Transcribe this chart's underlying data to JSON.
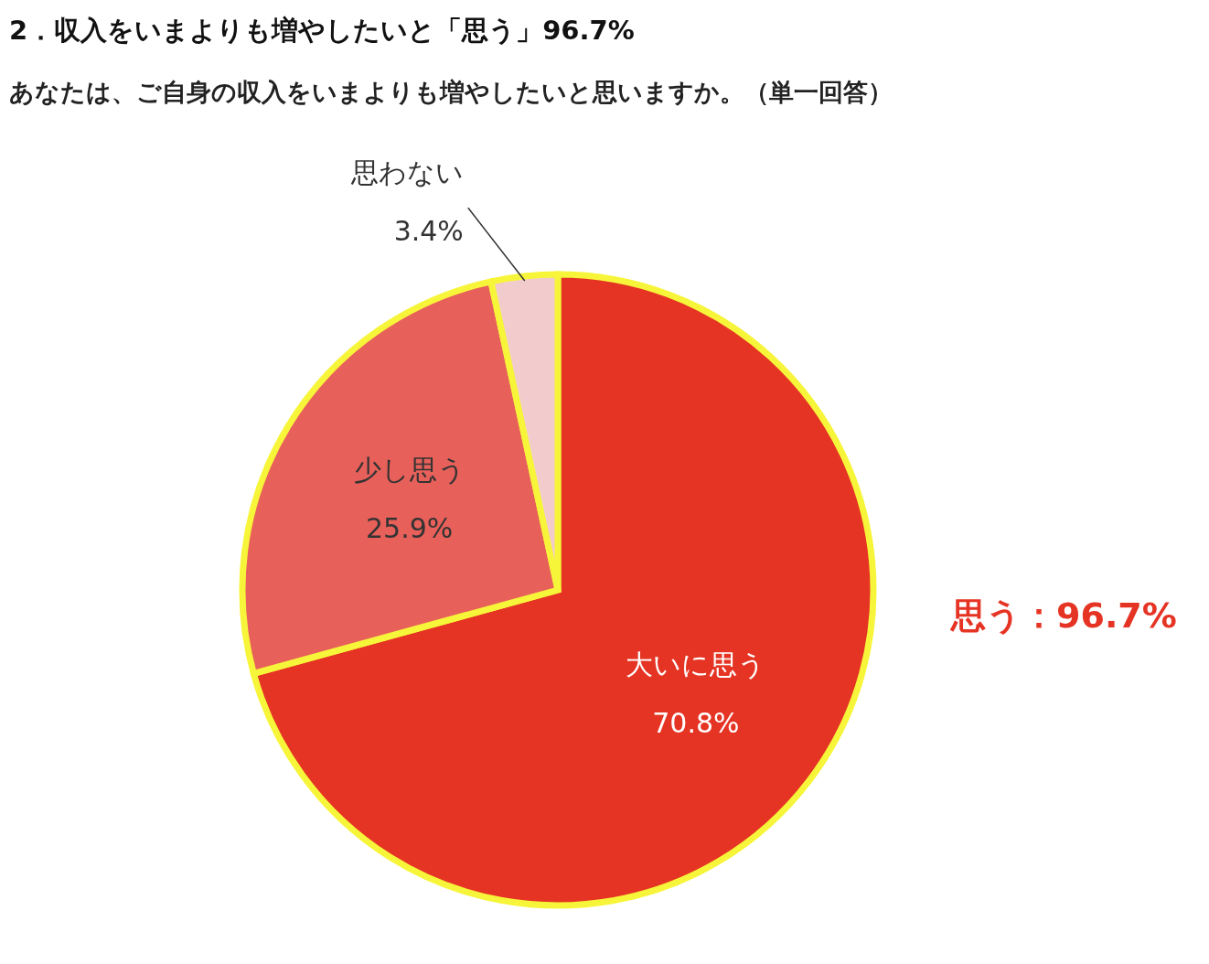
{
  "chart_data": {
    "type": "pie",
    "title": "2．収入をいまよりも増やしたいと「思う」96.7%",
    "subtitle": "あなたは、ご自身の収入をいまよりも増やしたいと思いますか。（単一回答）",
    "categories": [
      "大いに思う",
      "少し思う",
      "思わない"
    ],
    "values": [
      70.8,
      25.9,
      3.4
    ],
    "colors": [
      "#e53424",
      "#e8605a",
      "#f2cccc"
    ],
    "value_labels": [
      "70.8%",
      "25.9%",
      "3.4%"
    ],
    "annotations": [
      "思う：96.7%"
    ],
    "legend": false
  }
}
